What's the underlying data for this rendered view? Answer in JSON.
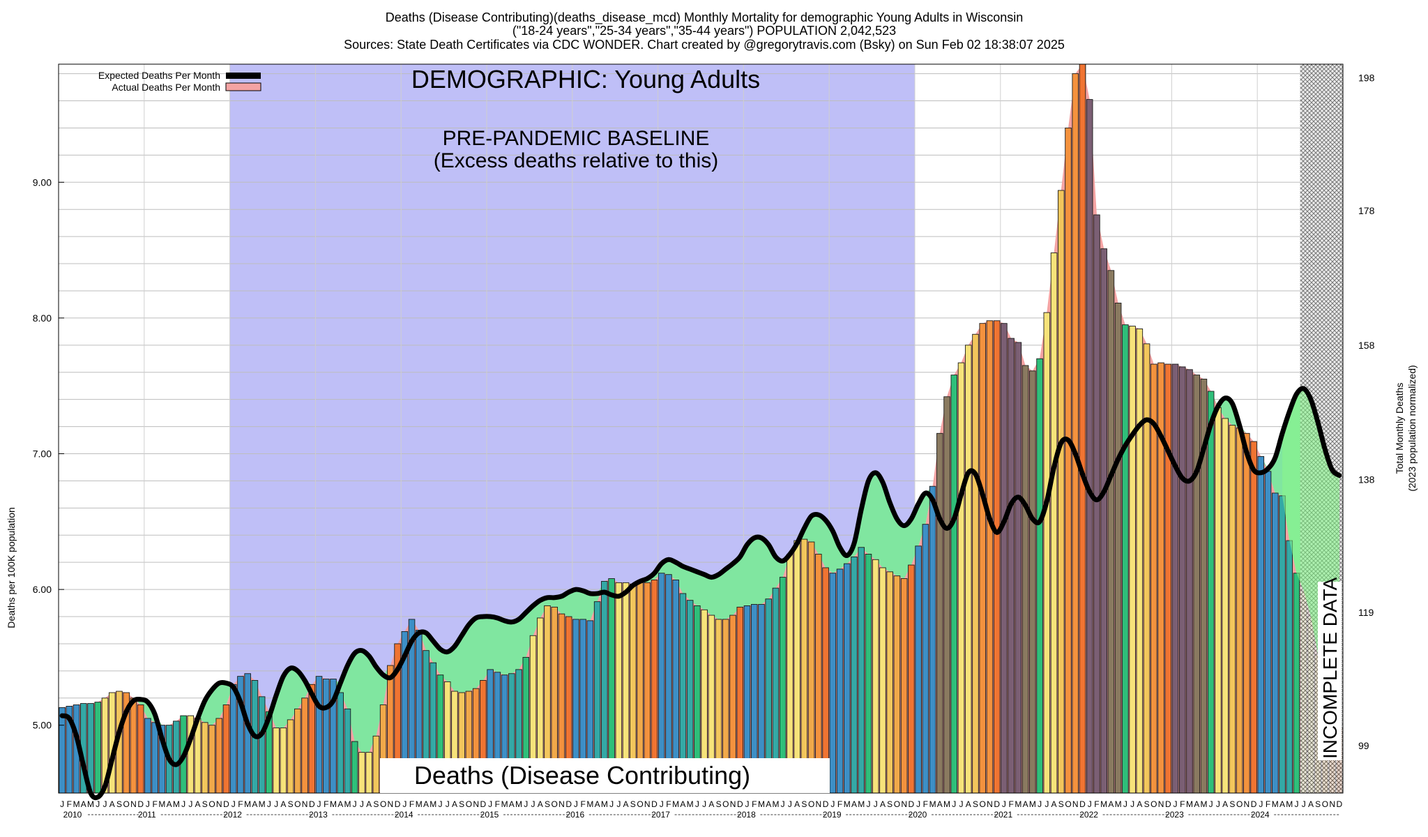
{
  "header": {
    "title_line1": "Deaths (Disease Contributing)(deaths_disease_mcd) Monthly Mortality for demographic Young Adults in Wisconsin",
    "title_line2": "(\"18-24 years\",\"25-34 years\",\"35-44 years\") POPULATION 2,042,523",
    "title_line3": "Sources: State Death Certificates via CDC WONDER.          Chart created by @gregorytravis.com (Bsky) on Sun Feb 02 18:38:07 2025"
  },
  "annotations": {
    "demographic": "DEMOGRAPHIC: Young Adults",
    "baseline_line1": "PRE-PANDEMIC BASELINE",
    "baseline_line2": "(Excess deaths relative to this)",
    "measure": "Deaths (Disease Contributing)",
    "incomplete": "INCOMPLETE DATA"
  },
  "legend": {
    "expected": "Expected Deaths Per Month",
    "actual": "Actual Deaths Per Month"
  },
  "colors": {
    "baseline_region": "#bfbff7",
    "expected_line": "#000000",
    "actual_band": "#f4a3a3",
    "deficit_fill": "#80e6a0",
    "incomplete_fill": "#8af58a",
    "months": [
      "#3d8fc6",
      "#3d8fc6",
      "#3d8fc6",
      "#34a9a6",
      "#34a9a6",
      "#2fbf7a",
      "#f7e37a",
      "#f7e37a",
      "#f3c65c",
      "#f1a94a",
      "#f4923e",
      "#f07432"
    ]
  },
  "chart_data": {
    "type": "bar",
    "x_start": "2010-01",
    "x_end": "2024-12",
    "y_left_label": "Deaths per 100K population",
    "y_right_label_line1": "Total Monthly Deaths",
    "y_right_label_line2": "(2023 population normalized)",
    "ylim": [
      4.5,
      9.87
    ],
    "y_left_ticks": [
      "5.00",
      "6.00",
      "7.00",
      "8.00",
      "9.00"
    ],
    "y_right_ticks": [
      {
        "at": 4.85,
        "label": "99"
      },
      {
        "at": 5.83,
        "label": "119"
      },
      {
        "at": 6.81,
        "label": "138"
      },
      {
        "at": 7.8,
        "label": "158"
      },
      {
        "at": 8.79,
        "label": "178"
      },
      {
        "at": 9.77,
        "label": "198"
      }
    ],
    "baseline_period": [
      "2012-01",
      "2019-12"
    ],
    "incomplete_period": [
      "2024-07",
      "2024-12"
    ],
    "grid": true,
    "legend_position": "top-left",
    "month_letters": [
      "J",
      "F",
      "M",
      "A",
      "M",
      "J",
      "J",
      "A",
      "S",
      "O",
      "N",
      "D"
    ],
    "years": [
      "2010",
      "2011",
      "2012",
      "2013",
      "2014",
      "2015",
      "2016",
      "2017",
      "2018",
      "2019",
      "2020",
      "2021",
      "2022",
      "2023",
      "2024"
    ],
    "series": [
      {
        "name": "Actual Deaths Per Month",
        "values": [
          5.13,
          5.14,
          5.15,
          5.16,
          5.16,
          5.17,
          5.2,
          5.24,
          5.25,
          5.24,
          5.2,
          5.15,
          5.05,
          5.02,
          5.0,
          5.0,
          5.03,
          5.07,
          5.07,
          5.05,
          5.02,
          5.0,
          5.05,
          5.15,
          5.3,
          5.36,
          5.38,
          5.33,
          5.21,
          5.1,
          4.98,
          4.98,
          5.04,
          5.12,
          5.2,
          5.3,
          5.36,
          5.34,
          5.34,
          5.24,
          5.12,
          4.88,
          4.8,
          4.8,
          4.92,
          5.15,
          5.44,
          5.6,
          5.69,
          5.78,
          5.7,
          5.55,
          5.46,
          5.37,
          5.32,
          5.25,
          5.24,
          5.25,
          5.27,
          5.33,
          5.41,
          5.39,
          5.37,
          5.38,
          5.41,
          5.5,
          5.66,
          5.79,
          5.88,
          5.87,
          5.82,
          5.8,
          5.78,
          5.78,
          5.77,
          5.91,
          6.06,
          6.08,
          6.05,
          6.05,
          6.04,
          6.05,
          6.05,
          6.07,
          6.12,
          6.11,
          6.07,
          5.97,
          5.92,
          5.88,
          5.85,
          5.81,
          5.78,
          5.78,
          5.81,
          5.87,
          5.88,
          5.89,
          5.89,
          5.93,
          6.01,
          6.09,
          6.26,
          6.36,
          6.37,
          6.35,
          6.26,
          6.16,
          6.12,
          6.15,
          6.19,
          6.24,
          6.31,
          6.26,
          6.22,
          6.16,
          6.13,
          6.1,
          6.08,
          6.18,
          6.32,
          6.48,
          6.76,
          7.15,
          7.42,
          7.58,
          7.67,
          7.8,
          7.88,
          7.96,
          7.98,
          7.98,
          7.96,
          7.85,
          7.82,
          7.65,
          7.61,
          7.7,
          8.04,
          8.48,
          8.94,
          9.4,
          9.8,
          9.87,
          9.61,
          8.76,
          8.51,
          8.35,
          8.11,
          7.95,
          7.94,
          7.92,
          7.81,
          7.66,
          7.67,
          7.66,
          7.66,
          7.64,
          7.62,
          7.58,
          7.55,
          7.46,
          7.34,
          7.26,
          7.21,
          7.19,
          7.15,
          7.09,
          6.98,
          6.87,
          6.71,
          6.69,
          6.36,
          6.12,
          5.99,
          5.8,
          5.52,
          5.25,
          5.08,
          4.98
        ]
      },
      {
        "name": "Expected Deaths Per Month",
        "values": [
          5.07,
          5.05,
          4.92,
          4.7,
          4.5,
          4.47,
          4.55,
          4.75,
          4.95,
          5.1,
          5.18,
          5.19,
          5.17,
          5.08,
          4.9,
          4.75,
          4.71,
          4.77,
          4.9,
          5.05,
          5.18,
          5.26,
          5.31,
          5.31,
          5.28,
          5.17,
          5.01,
          4.92,
          4.94,
          5.06,
          5.22,
          5.36,
          5.42,
          5.4,
          5.33,
          5.23,
          5.14,
          5.13,
          5.18,
          5.31,
          5.44,
          5.53,
          5.55,
          5.51,
          5.43,
          5.37,
          5.35,
          5.41,
          5.51,
          5.62,
          5.68,
          5.68,
          5.62,
          5.56,
          5.54,
          5.58,
          5.66,
          5.74,
          5.79,
          5.8,
          5.8,
          5.79,
          5.77,
          5.76,
          5.78,
          5.83,
          5.88,
          5.92,
          5.94,
          5.94,
          5.95,
          5.98,
          6.0,
          5.99,
          5.97,
          5.97,
          5.98,
          5.96,
          5.95,
          5.98,
          6.03,
          6.06,
          6.08,
          6.12,
          6.19,
          6.22,
          6.2,
          6.17,
          6.15,
          6.13,
          6.11,
          6.09,
          6.11,
          6.15,
          6.19,
          6.24,
          6.33,
          6.38,
          6.38,
          6.33,
          6.24,
          6.21,
          6.26,
          6.34,
          6.45,
          6.54,
          6.55,
          6.51,
          6.43,
          6.31,
          6.25,
          6.34,
          6.59,
          6.8,
          6.86,
          6.79,
          6.64,
          6.52,
          6.47,
          6.52,
          6.63,
          6.71,
          6.66,
          6.52,
          6.45,
          6.52,
          6.7,
          6.86,
          6.85,
          6.7,
          6.52,
          6.42,
          6.5,
          6.63,
          6.68,
          6.62,
          6.52,
          6.5,
          6.65,
          6.9,
          7.08,
          7.1,
          7.0,
          6.85,
          6.72,
          6.66,
          6.72,
          6.84,
          6.96,
          7.06,
          7.14,
          7.21,
          7.25,
          7.22,
          7.13,
          7.02,
          6.91,
          6.82,
          6.8,
          6.87,
          7.04,
          7.22,
          7.35,
          7.41,
          7.37,
          7.21,
          7.01,
          6.88,
          6.86,
          6.89,
          6.97,
          7.15,
          7.31,
          7.44,
          7.48,
          7.4,
          7.23,
          7.03,
          6.88,
          6.84
        ]
      }
    ]
  }
}
